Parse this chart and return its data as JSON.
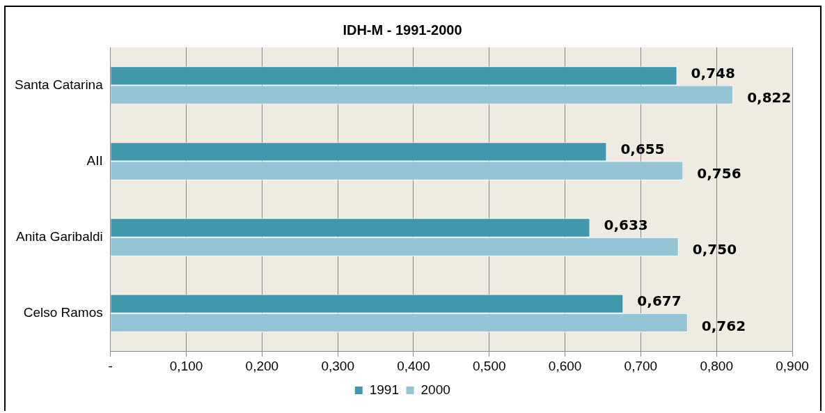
{
  "chart_data": {
    "type": "bar",
    "orientation": "horizontal",
    "title": "IDH-M - 1991-2000",
    "categories": [
      "Santa Catarina",
      "AII",
      "Anita Garibaldi",
      "Celso Ramos"
    ],
    "series": [
      {
        "name": "1991",
        "color": "#3f98ac",
        "values": [
          0.748,
          0.655,
          0.633,
          0.677
        ],
        "value_labels": [
          "0,748",
          "0,655",
          "0,633",
          "0,677"
        ]
      },
      {
        "name": "2000",
        "color": "#93c5d6",
        "values": [
          0.822,
          0.756,
          0.75,
          0.762
        ],
        "value_labels": [
          "0,822",
          "0,756",
          "0,750",
          "0,762"
        ]
      }
    ],
    "xlim": [
      0,
      0.9
    ],
    "xticks": [
      {
        "value": 0,
        "label": "-"
      },
      {
        "value": 0.1,
        "label": "0,100"
      },
      {
        "value": 0.2,
        "label": "0,200"
      },
      {
        "value": 0.3,
        "label": "0,300"
      },
      {
        "value": 0.4,
        "label": "0,400"
      },
      {
        "value": 0.5,
        "label": "0,500"
      },
      {
        "value": 0.6,
        "label": "0,600"
      },
      {
        "value": 0.7,
        "label": "0,700"
      },
      {
        "value": 0.8,
        "label": "0,800"
      },
      {
        "value": 0.9,
        "label": "0,900"
      }
    ],
    "grid": "x",
    "legend": "bottom"
  }
}
